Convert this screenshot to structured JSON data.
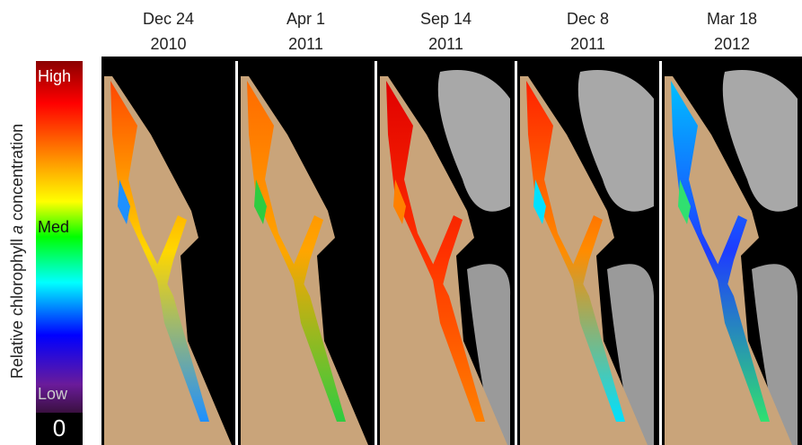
{
  "colorbar": {
    "title_parts": [
      "Relative chlorophyll",
      "a",
      "concentration"
    ],
    "labels": [
      "High",
      "Med",
      "Low",
      "0"
    ]
  },
  "panels": [
    {
      "date": "Dec 24",
      "year": "2010"
    },
    {
      "date": "Apr 1",
      "year": "2011"
    },
    {
      "date": "Sep 14",
      "year": "2011"
    },
    {
      "date": "Dec 8",
      "year": "2011"
    },
    {
      "date": "Mar 18",
      "year": "2012"
    }
  ]
}
